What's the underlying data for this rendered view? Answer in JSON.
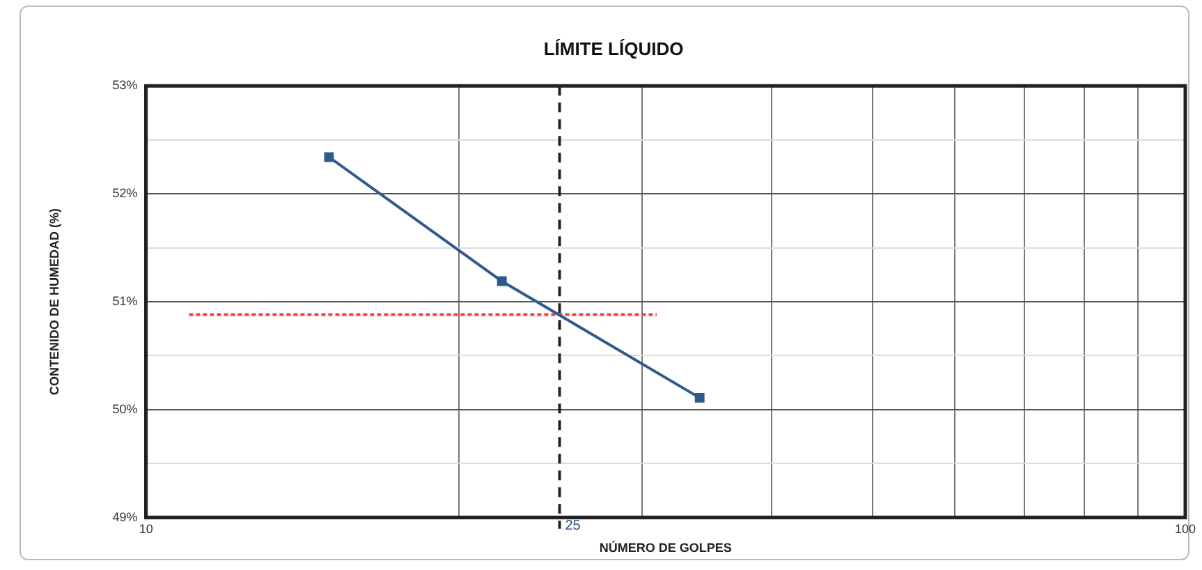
{
  "chart_data": {
    "type": "line",
    "title": "LÍMITE LÍQUIDO",
    "xlabel": "NÚMERO DE GOLPES",
    "ylabel": "CONTENIDO DE HUMEDAD (%)",
    "log": "x",
    "grid": true,
    "legend": false,
    "xlim": [
      10,
      100
    ],
    "xticks": [
      10,
      {
        "value": 20,
        "label": null
      },
      {
        "value": 30,
        "label": null
      },
      {
        "value": 40,
        "label": null
      },
      {
        "value": 50,
        "label": null
      },
      {
        "value": 60,
        "label": null
      },
      {
        "value": 70,
        "label": null
      },
      {
        "value": 80,
        "label": null
      },
      {
        "value": 90,
        "label": null
      },
      100
    ],
    "ylim": [
      49,
      53
    ],
    "yticks": [
      {
        "value": 49,
        "label": "49%"
      },
      {
        "value": 49.5,
        "label": null
      },
      {
        "value": 50,
        "label": "50%"
      },
      {
        "value": 50.5,
        "label": null
      },
      {
        "value": 51,
        "label": "51%"
      },
      {
        "value": 51.5,
        "label": null
      },
      {
        "value": 52,
        "label": "52%"
      },
      {
        "value": 52.5,
        "label": null
      },
      {
        "value": 53,
        "label": "53%"
      }
    ],
    "series": [
      {
        "color": "#2f5b8c",
        "x": [
          15,
          22,
          34.1
        ],
        "values": [
          52.34,
          51.19,
          50.11
        ],
        "marker": "square",
        "line_style": "solid"
      },
      {
        "color": "#ff3b3b",
        "x": [
          11,
          31
        ],
        "values": [
          50.88,
          50.88
        ],
        "marker": "none",
        "line_style": "dotted"
      }
    ],
    "ref_lines": [
      {
        "axis": "x",
        "value": 25,
        "label": "25",
        "color": "#222222",
        "line_style": "dashed"
      }
    ]
  }
}
